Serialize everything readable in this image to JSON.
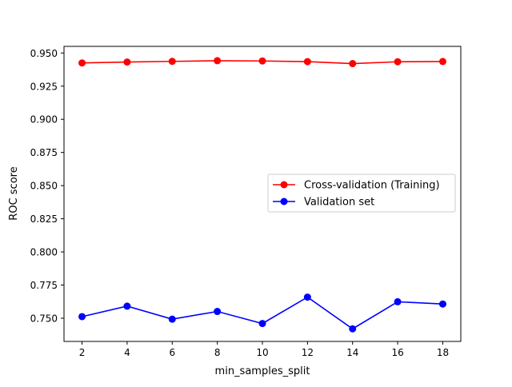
{
  "chart_data": {
    "type": "line",
    "title": "",
    "xlabel": "min_samples_split",
    "ylabel": "ROC score",
    "x": [
      2,
      4,
      6,
      8,
      10,
      12,
      14,
      16,
      18
    ],
    "xlim": [
      1.2,
      18.8
    ],
    "ylim": [
      0.7325,
      0.955
    ],
    "xticks": [
      2,
      4,
      6,
      8,
      10,
      12,
      14,
      16,
      18
    ],
    "yticks": [
      0.75,
      0.775,
      0.8,
      0.825,
      0.85,
      0.875,
      0.9,
      0.925,
      0.95
    ],
    "ytick_labels": [
      "0.750",
      "0.775",
      "0.800",
      "0.825",
      "0.850",
      "0.875",
      "0.900",
      "0.925",
      "0.950"
    ],
    "grid": false,
    "legend_position": "center-right",
    "series": [
      {
        "name": "Cross-validation (Training)",
        "color": "#ff0000",
        "marker": "circle",
        "values": [
          0.9425,
          0.9432,
          0.9437,
          0.9442,
          0.944,
          0.9435,
          0.942,
          0.9434,
          0.9436
        ]
      },
      {
        "name": "Validation set",
        "color": "#0000ff",
        "marker": "circle",
        "values": [
          0.7512,
          0.7591,
          0.7493,
          0.7551,
          0.746,
          0.7659,
          0.742,
          0.7624,
          0.7607
        ]
      }
    ]
  }
}
